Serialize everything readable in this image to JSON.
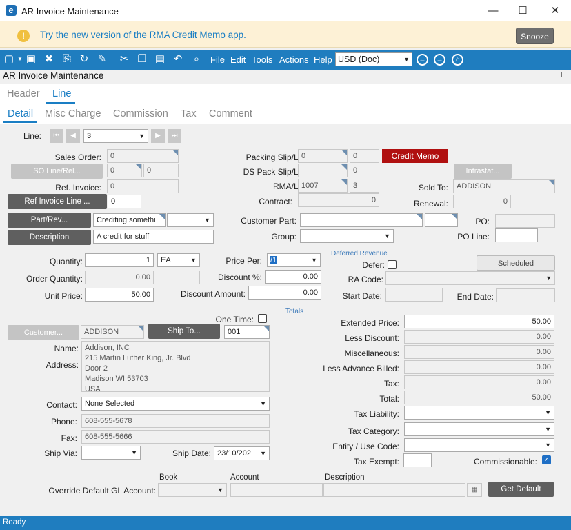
{
  "window": {
    "title": "AR Invoice Maintenance",
    "app_icon": "epicor-e-icon"
  },
  "banner": {
    "link_text": "Try the new version of the RMA Credit Memo app.",
    "snooze_label": "Snooze"
  },
  "toolbar": {
    "menus": [
      "File",
      "Edit",
      "Tools",
      "Actions",
      "Help"
    ],
    "currency": "USD (Doc)"
  },
  "form_title": "AR Invoice Maintenance",
  "tabs_top": [
    "Header",
    "Line"
  ],
  "tabs_sub": [
    "Detail",
    "Misc Charge",
    "Commission",
    "Tax",
    "Comment"
  ],
  "line": {
    "label": "Line:",
    "value": "3"
  },
  "left": {
    "sales_order_label": "Sales Order:",
    "sales_order": "0",
    "so_line_btn": "SO Line/Rel...",
    "so_line": "0",
    "so_rel": "0",
    "ref_invoice_label": "Ref. Invoice:",
    "ref_invoice": "0",
    "ref_invoice_line_btn": "Ref Invoice Line ...",
    "ref_invoice_line": "0",
    "part_btn": "Part/Rev...",
    "part": "Crediting somethi",
    "description_btn": "Description",
    "description": "A credit for stuff"
  },
  "mid": {
    "packing_slip_label": "Packing Slip/Line:",
    "packing_slip": "0",
    "packing_line": "0",
    "credit_memo_btn": "Credit Memo",
    "ds_pack_label": "DS Pack Slip/Line:",
    "ds_pack_line": "0",
    "rma_label": "RMA/Line:",
    "rma": "1007",
    "rma_line": "3",
    "contract_label": "Contract:",
    "contract": "0",
    "customer_part_label": "Customer Part:",
    "group_label": "Group:"
  },
  "right": {
    "intrastat_btn": "Intrastat...",
    "sold_to_label": "Sold To:",
    "sold_to": "ADDISON",
    "renewal_label": "Renewal:",
    "renewal": "0",
    "po_label": "PO:",
    "po_line_label": "PO Line:"
  },
  "qty": {
    "quantity_label": "Quantity:",
    "quantity": "1",
    "uom": "EA",
    "order_qty_label": "Order Quantity:",
    "order_qty": "0.00",
    "unit_price_label": "Unit Price:",
    "unit_price": "50.00",
    "price_per_label": "Price Per:",
    "price_per": "/1",
    "discount_pct_label": "Discount %:",
    "discount_pct": "0.00",
    "discount_amt_label": "Discount Amount:",
    "discount_amt": "0.00"
  },
  "deferred": {
    "section": "Deferred Revenue",
    "defer_label": "Defer:",
    "scheduled_btn": "Scheduled",
    "ra_code_label": "RA Code:",
    "start_date_label": "Start Date:",
    "end_date_label": "End Date:"
  },
  "customer": {
    "customer_btn": "Customer...",
    "customer": "ADDISON",
    "one_time_label": "One Time:",
    "ship_to_btn": "Ship To...",
    "ship_to": "001",
    "name_label": "Name:",
    "address_label": "Address:",
    "address_lines": [
      "Addison, INC",
      "215 Martin Luther King, Jr. Blvd",
      "Door 2",
      "Madison WI 53703",
      "USA"
    ],
    "contact_label": "Contact:",
    "contact": "None Selected",
    "phone_label": "Phone:",
    "phone": "608-555-5678",
    "fax_label": "Fax:",
    "fax": "608-555-5666",
    "ship_via_label": "Ship Via:",
    "ship_date_label": "Ship Date:",
    "ship_date": "23/10/202"
  },
  "totals": {
    "section": "Totals",
    "extended_price_label": "Extended Price:",
    "extended_price": "50.00",
    "less_discount_label": "Less Discount:",
    "less_discount": "0.00",
    "misc_label": "Miscellaneous:",
    "misc": "0.00",
    "less_advance_label": "Less Advance Billed:",
    "less_advance": "0.00",
    "tax_label": "Tax:",
    "tax": "0.00",
    "total_label": "Total:",
    "total": "50.00",
    "tax_liability_label": "Tax Liability:",
    "tax_category_label": "Tax Category:",
    "entity_use_label": "Entity / Use Code:",
    "tax_exempt_label": "Tax Exempt:",
    "commissionable_label": "Commissionable:"
  },
  "gl": {
    "override_label": "Override Default GL Account:",
    "book_hdr": "Book",
    "account_hdr": "Account",
    "description_hdr": "Description",
    "get_default_btn": "Get Default"
  },
  "status": "Ready"
}
